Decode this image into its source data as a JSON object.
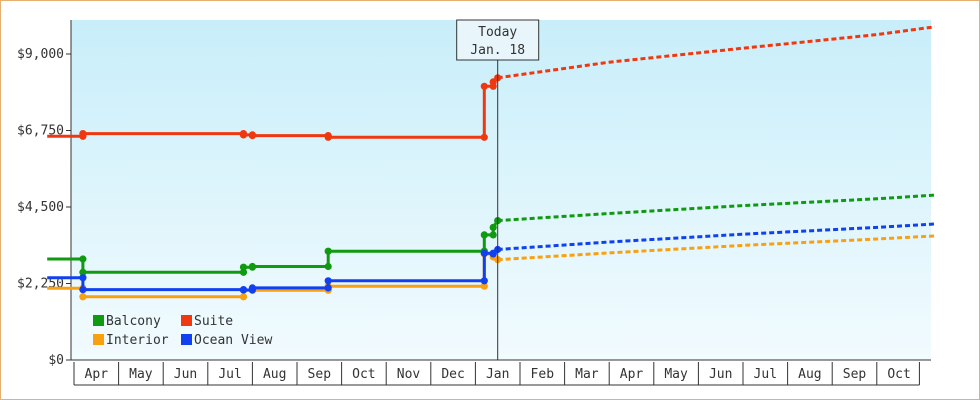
{
  "chart_data": {
    "type": "line",
    "ylim": [
      0,
      10000
    ],
    "yticks": [
      0,
      2250,
      4500,
      6750,
      9000
    ],
    "ytick_labels": [
      "$0",
      "$2,250",
      "$4,500",
      "$6,750",
      "$9,000"
    ],
    "month_labels": [
      "Apr",
      "May",
      "Jun",
      "Jul",
      "Aug",
      "Sep",
      "Oct",
      "Nov",
      "Dec",
      "Jan",
      "Feb",
      "Mar",
      "Apr",
      "May",
      "Jun",
      "Jul",
      "Aug",
      "Sep",
      "Oct"
    ],
    "today": {
      "line1": "Today",
      "line2": "Jan. 18",
      "x": 9.5
    },
    "legend_position": "bottom-left",
    "grid": false,
    "series": [
      {
        "name": "Balcony",
        "color": "#109a10",
        "history": [
          [
            -0.6,
            2970
          ],
          [
            0.2,
            2970
          ],
          [
            0.2,
            2580
          ],
          [
            3.8,
            2580
          ],
          [
            3.8,
            2730
          ],
          [
            4.0,
            2730
          ],
          [
            4.0,
            2750
          ],
          [
            5.7,
            2750
          ],
          [
            5.7,
            3200
          ],
          [
            9.2,
            3200
          ],
          [
            9.2,
            3680
          ],
          [
            9.4,
            3680
          ],
          [
            9.4,
            3900
          ],
          [
            9.5,
            4100
          ]
        ],
        "forecast": [
          [
            9.5,
            4100
          ],
          [
            12,
            4310
          ],
          [
            15,
            4540
          ],
          [
            18,
            4740
          ],
          [
            19.3,
            4850
          ]
        ]
      },
      {
        "name": "Suite",
        "color": "#f03810",
        "history": [
          [
            -0.6,
            6580
          ],
          [
            0.2,
            6580
          ],
          [
            0.2,
            6660
          ],
          [
            3.8,
            6660
          ],
          [
            3.8,
            6620
          ],
          [
            4.0,
            6620
          ],
          [
            4.0,
            6600
          ],
          [
            5.7,
            6600
          ],
          [
            5.7,
            6550
          ],
          [
            9.2,
            6550
          ],
          [
            9.2,
            8050
          ],
          [
            9.4,
            8050
          ],
          [
            9.4,
            8180
          ],
          [
            9.5,
            8300
          ]
        ],
        "forecast": [
          [
            9.5,
            8300
          ],
          [
            12,
            8760
          ],
          [
            15,
            9170
          ],
          [
            18,
            9570
          ],
          [
            19.3,
            9800
          ]
        ]
      },
      {
        "name": "Interior",
        "color": "#f8a010",
        "history": [
          [
            -0.6,
            2110
          ],
          [
            0.2,
            2110
          ],
          [
            0.2,
            1860
          ],
          [
            3.8,
            1860
          ],
          [
            3.8,
            2050
          ],
          [
            4.0,
            2050
          ],
          [
            4.0,
            2050
          ],
          [
            5.7,
            2050
          ],
          [
            5.7,
            2170
          ],
          [
            9.2,
            2170
          ],
          [
            9.2,
            3120
          ],
          [
            9.4,
            3120
          ],
          [
            9.4,
            3030
          ],
          [
            9.5,
            2950
          ]
        ],
        "forecast": [
          [
            9.5,
            2950
          ],
          [
            12,
            3150
          ],
          [
            15,
            3370
          ],
          [
            18,
            3560
          ],
          [
            19.3,
            3650
          ]
        ]
      },
      {
        "name": "Ocean View",
        "color": "#1040f0",
        "history": [
          [
            -0.6,
            2420
          ],
          [
            0.2,
            2420
          ],
          [
            0.2,
            2070
          ],
          [
            3.8,
            2070
          ],
          [
            3.8,
            2060
          ],
          [
            4.0,
            2060
          ],
          [
            4.0,
            2120
          ],
          [
            5.7,
            2120
          ],
          [
            5.7,
            2330
          ],
          [
            9.2,
            2330
          ],
          [
            9.2,
            3140
          ],
          [
            9.4,
            3140
          ],
          [
            9.4,
            3120
          ],
          [
            9.5,
            3250
          ]
        ],
        "forecast": [
          [
            9.5,
            3250
          ],
          [
            12,
            3470
          ],
          [
            15,
            3700
          ],
          [
            18,
            3900
          ],
          [
            19.3,
            4000
          ]
        ]
      }
    ]
  }
}
